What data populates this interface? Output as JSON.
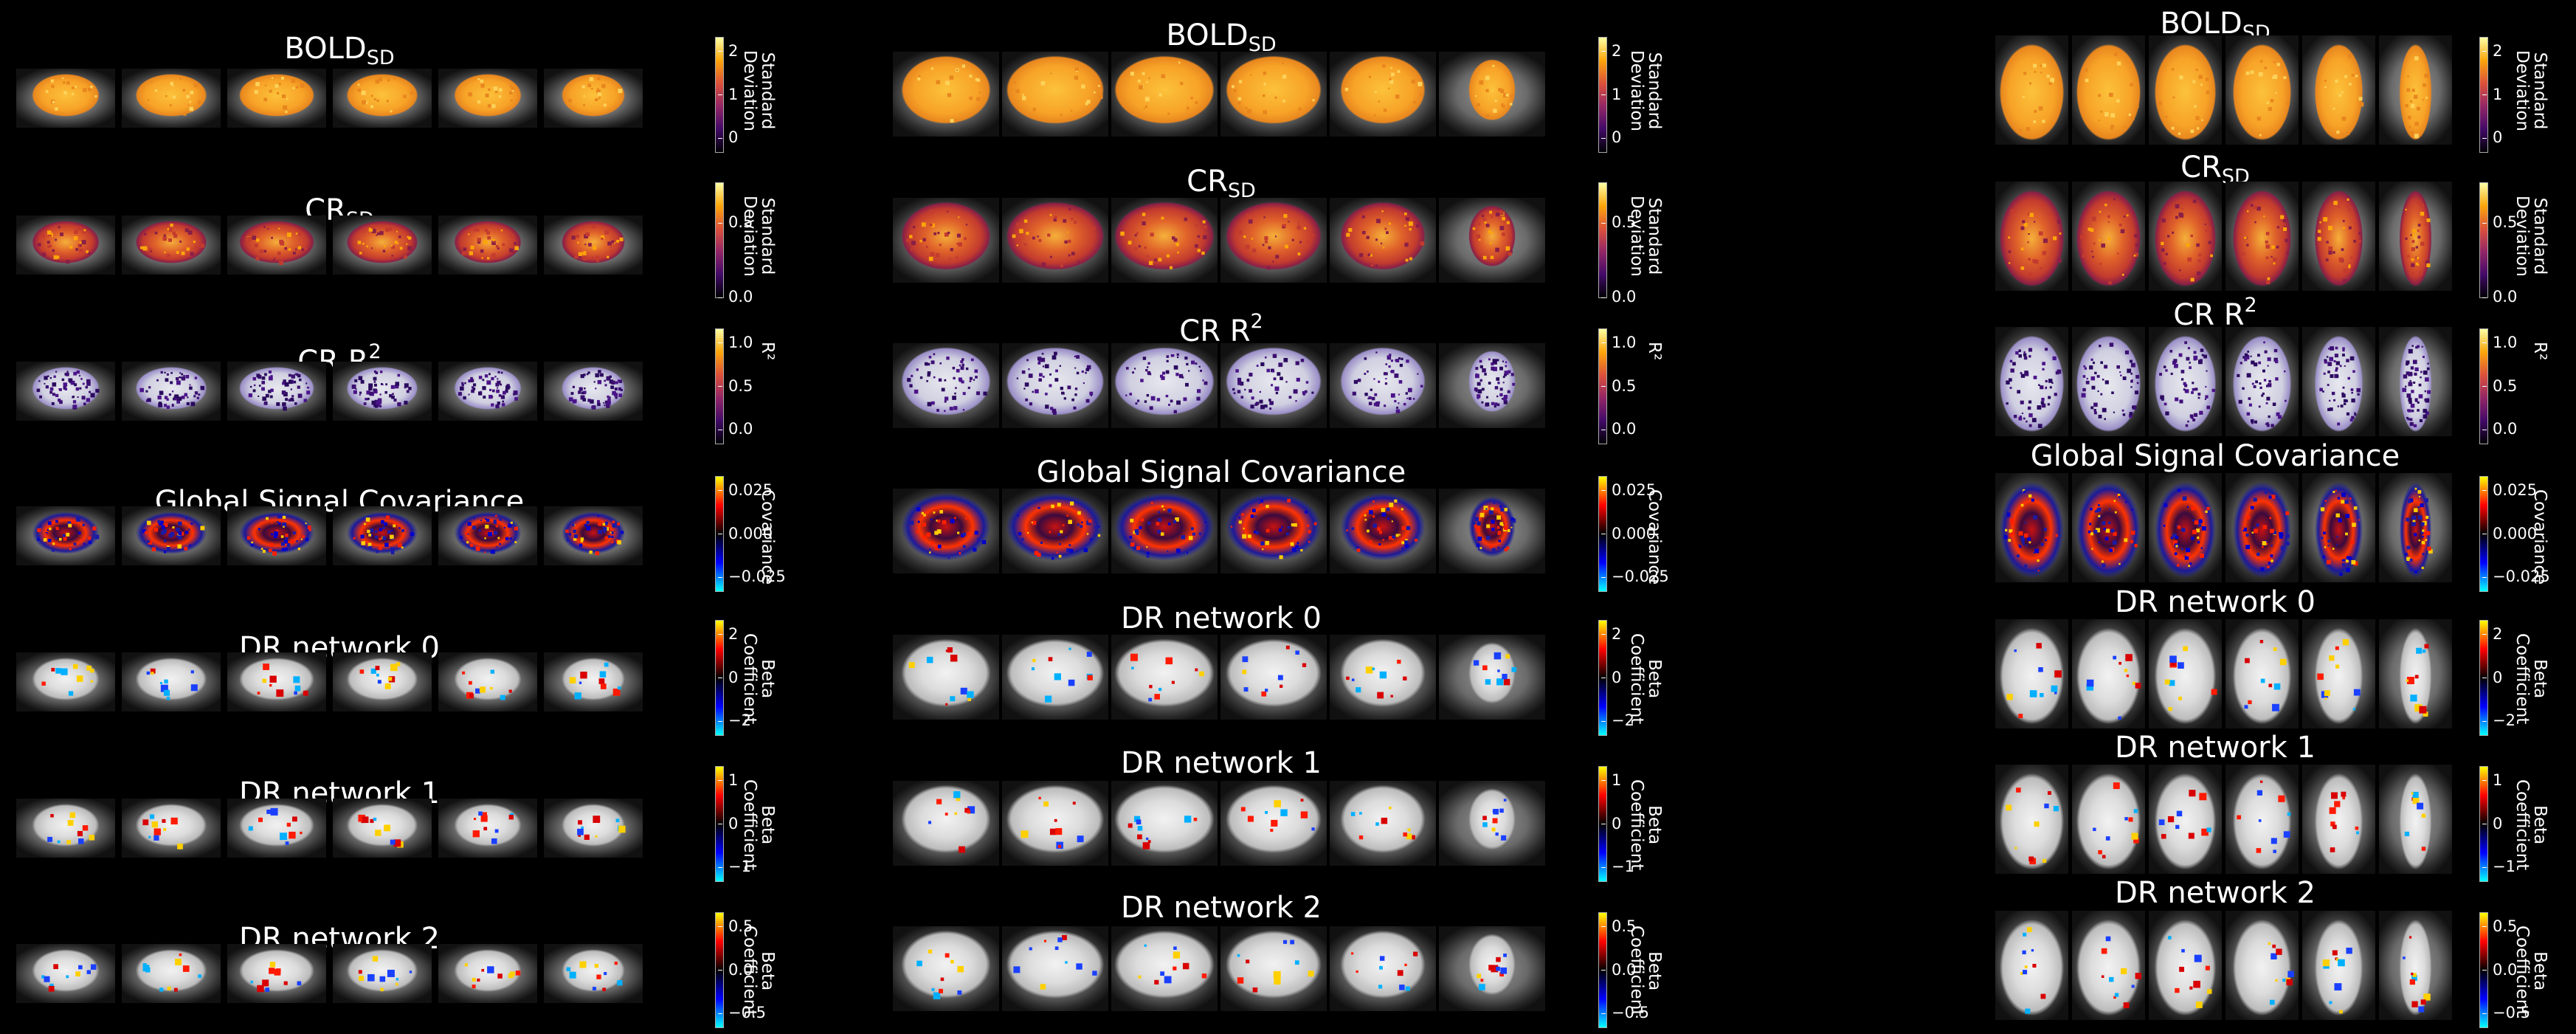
{
  "colormaps": {
    "inferno": [
      "#000004",
      "#420a68",
      "#932667",
      "#dd513a",
      "#fca50a",
      "#fcffa4"
    ],
    "diverging": [
      "#00ffff",
      "#0000ff",
      "#000000",
      "#ff0000",
      "#ffff00"
    ]
  },
  "panels": [
    {
      "view": "sagittal"
    },
    {
      "view": "coronal"
    },
    {
      "view": "axial"
    }
  ],
  "rows": [
    {
      "title_main": "BOLD",
      "title_sub": "SD",
      "title_sup": "",
      "cbar_label_lines": [
        "Standard",
        "Deviation"
      ],
      "ticks": [
        "2",
        "1",
        "0"
      ],
      "ticks_alt": [
        "2",
        "1",
        "0"
      ],
      "cmap": "inferno",
      "fill": "bold"
    },
    {
      "title_main": "CR",
      "title_sub": "SD",
      "title_sup": "",
      "cbar_label_lines": [
        "Standard",
        "Deviation"
      ],
      "ticks": [
        "0.5",
        "0.0"
      ],
      "ticks_alt": [
        "0.5",
        "0.0"
      ],
      "cmap": "inferno",
      "fill": "cr"
    },
    {
      "title_main": "CR R",
      "title_sub": "",
      "title_sup": "2",
      "cbar_label_lines": [
        "R²"
      ],
      "ticks": [
        "1.0",
        "0.5",
        "0.0"
      ],
      "ticks_alt": [
        "1.0",
        "0.5",
        "0.0"
      ],
      "cmap": "inferno",
      "fill": "r2"
    },
    {
      "title_main": "Global Signal Covariance",
      "title_sub": "",
      "title_sup": "",
      "cbar_label_lines": [
        "Covariance"
      ],
      "ticks": [
        "0.025",
        "0.000",
        "−0.025"
      ],
      "ticks_alt": [
        "0.025",
        "0.000",
        "−0.025"
      ],
      "cmap": "diverging",
      "fill": "gsc"
    },
    {
      "title_main": "DR network 0",
      "title_sub": "",
      "title_sup": "",
      "cbar_label_lines": [
        "Beta",
        "Coefficient"
      ],
      "ticks": [
        "2",
        "0",
        "−2"
      ],
      "ticks_alt": [
        "2",
        "0",
        "−2"
      ],
      "cmap": "diverging",
      "fill": "dr"
    },
    {
      "title_main": "DR network 1",
      "title_sub": "",
      "title_sup": "",
      "cbar_label_lines": [
        "Beta",
        "Coefficient"
      ],
      "ticks": [
        "1",
        "0",
        "−1"
      ],
      "ticks_alt": [
        "1",
        "0",
        "−1"
      ],
      "cmap": "diverging",
      "fill": "dr"
    },
    {
      "title_main": "DR network 2",
      "title_sub": "",
      "title_sup": "",
      "cbar_label_lines": [
        "Beta",
        "Coefficient"
      ],
      "ticks": [
        "0.5",
        "0.0",
        "−0.5"
      ],
      "ticks_alt": [
        "0.5",
        "0.0",
        "−0.5"
      ],
      "cmap": "diverging",
      "fill": "dr"
    }
  ]
}
